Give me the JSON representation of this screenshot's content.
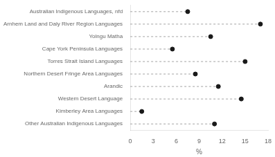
{
  "chart_data": {
    "type": "dot",
    "orientation": "horizontal",
    "categories": [
      "Other Australian Indigenous Languages",
      "Kimberley Area Languages",
      "Western Desert Language",
      "Arandic",
      "Northern Desert Fringe Area Languages",
      "Torres Strait Island Languages",
      "Cape York Peninsula Languages",
      "Yolngu Matha",
      "Arnhem Land and Daly River Region Languages",
      "Australian Indigenous Languages, nfd"
    ],
    "values": [
      11.0,
      1.5,
      14.5,
      11.5,
      8.5,
      15.0,
      5.5,
      10.5,
      17.0,
      7.5
    ],
    "color": "#1a1a1a",
    "line_style": "dashed",
    "marker": "circle",
    "xlabel": "%",
    "xlim": [
      0,
      18
    ],
    "xticks": [
      0,
      3,
      6,
      9,
      12,
      15,
      18
    ],
    "grid": false
  }
}
